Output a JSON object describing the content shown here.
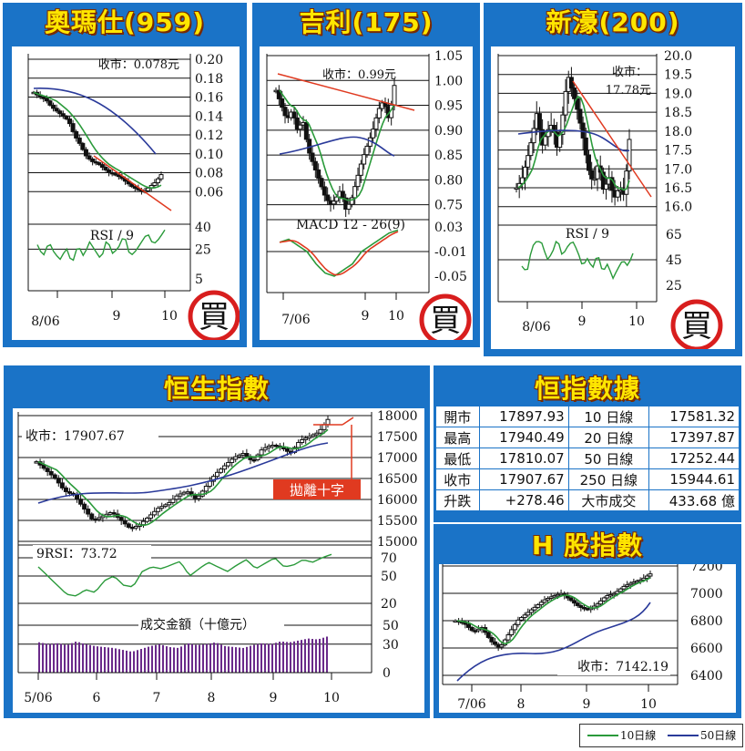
{
  "stocks": [
    {
      "title": "奧瑪仕(959)",
      "close_label": "收市：0.078元",
      "indicator": "RSI / 9",
      "xticks": [
        "8/06",
        "9",
        "10"
      ],
      "yticks": [
        "0.20",
        "0.18",
        "0.16",
        "0.14",
        "0.12",
        "0.10",
        "0.08",
        "0.06"
      ],
      "ind_ticks": [
        "40",
        "25",
        "5"
      ],
      "rating": "買"
    },
    {
      "title": "吉利(175)",
      "close_label": "收市：0.99元",
      "indicator": "MACD 12 - 26(9)",
      "xticks": [
        "7/06",
        "9",
        "10"
      ],
      "yticks": [
        "1.05",
        "1.00",
        "0.95",
        "0.90",
        "0.85",
        "0.80",
        "0.75"
      ],
      "ind_ticks": [
        "0.03",
        "-0.01",
        "-0.05"
      ],
      "rating": "買"
    },
    {
      "title": "新濠(200)",
      "close_label_1": "收市：",
      "close_label_2": "17.78元",
      "indicator": "RSI / 9",
      "xticks": [
        "8/06",
        "9",
        "10"
      ],
      "yticks": [
        "20.0",
        "19.5",
        "19.0",
        "18.5",
        "18.0",
        "17.5",
        "17.0",
        "16.5",
        "16.0"
      ],
      "ind_ticks": [
        "65",
        "45",
        "25"
      ],
      "rating": "買"
    }
  ],
  "hsi": {
    "title": "恒生指數",
    "close_label": "收市：17907.67",
    "annotation": "拋離十字",
    "rsi_label": "9RSI：73.72",
    "turnover_label": "成交金額（十億元）",
    "yticks": [
      "18000",
      "17500",
      "17000",
      "16500",
      "16000",
      "15500",
      "15000"
    ],
    "rsi_ticks": [
      "70",
      "50",
      "20"
    ],
    "vol_ticks": [
      "50",
      "30",
      "0"
    ],
    "xticks": [
      "5/06",
      "6",
      "7",
      "8",
      "9",
      "10"
    ]
  },
  "table": {
    "title": "恒指數據",
    "rows": [
      [
        "開市",
        "17897.93",
        "10 日線",
        "17581.32"
      ],
      [
        "最高",
        "17940.49",
        "20 日線",
        "17397.87"
      ],
      [
        "最低",
        "17810.07",
        "50 日線",
        "17252.44"
      ],
      [
        "收市",
        "17907.67",
        "250 日線",
        "15944.61"
      ],
      [
        "升跌",
        "+278.46",
        "大市成交",
        "433.68 億"
      ]
    ]
  },
  "hshare": {
    "title": "H 股指數",
    "close_label": "收市：7142.19",
    "yticks": [
      "7200",
      "7000",
      "6800",
      "6600",
      "6400"
    ],
    "xticks": [
      "7/06",
      "8",
      "9",
      "10"
    ]
  },
  "legend": {
    "items": [
      "10日線",
      "50日線"
    ]
  },
  "colors": {
    "panel": "#1a73c7",
    "title": "#ffe600",
    "ma10": "#2a9a3a",
    "ma50": "#2a3a9a",
    "trend": "#e03a20",
    "price": "#111111",
    "rating": "#d81e1e"
  },
  "chart_data": [
    {
      "type": "candlestick",
      "title": "奧瑪仕(959)",
      "ylim": [
        0.04,
        0.2
      ],
      "close": [
        0.165,
        0.16,
        0.158,
        0.15,
        0.145,
        0.14,
        0.135,
        0.12,
        0.11,
        0.098,
        0.092,
        0.09,
        0.085,
        0.08,
        0.078,
        0.075,
        0.07,
        0.065,
        0.062,
        0.06,
        0.065,
        0.07,
        0.078
      ],
      "ma10_endpoints": [
        0.165,
        0.075
      ],
      "ma50_endpoints": [
        0.165,
        0.12
      ],
      "rsi": [
        28,
        20,
        30,
        22,
        18,
        26,
        15,
        28,
        20,
        30,
        24,
        18,
        32,
        22,
        26,
        35,
        20,
        24,
        30,
        36,
        28,
        32,
        38
      ]
    },
    {
      "type": "candlestick",
      "title": "吉利(175)",
      "ylim": [
        0.72,
        1.05
      ],
      "close": [
        0.98,
        0.95,
        0.92,
        0.94,
        0.9,
        0.92,
        0.86,
        0.83,
        0.8,
        0.77,
        0.75,
        0.76,
        0.78,
        0.74,
        0.76,
        0.8,
        0.84,
        0.87,
        0.9,
        0.94,
        0.96,
        0.92,
        0.99
      ],
      "macd": [
        0.005,
        0.01,
        0.0,
        -0.01,
        -0.03,
        -0.045,
        -0.05,
        -0.04,
        -0.03,
        -0.01,
        0.0,
        0.01,
        0.02,
        0.025
      ]
    },
    {
      "type": "candlestick",
      "title": "新濠(200)",
      "ylim": [
        15.8,
        20.0
      ],
      "close": [
        16.5,
        16.7,
        17.2,
        17.8,
        18.5,
        17.6,
        18.0,
        18.2,
        17.5,
        18.4,
        19.5,
        19.0,
        18.5,
        17.8,
        17.0,
        16.6,
        17.2,
        16.4,
        16.8,
        16.2,
        16.5,
        16.3,
        17.78
      ],
      "rsi": [
        40,
        35,
        55,
        60,
        58,
        45,
        50,
        62,
        48,
        55,
        60,
        52,
        40,
        46,
        38,
        50,
        35,
        42,
        30,
        38,
        45,
        40,
        50
      ]
    },
    {
      "type": "candlestick",
      "title": "恒生指數",
      "ylim": [
        15000,
        18000
      ],
      "close": [
        16900,
        16700,
        16500,
        16200,
        16100,
        15800,
        15500,
        15600,
        15700,
        15500,
        15300,
        15400,
        15600,
        15800,
        15900,
        16100,
        16200,
        16000,
        16300,
        16600,
        16800,
        17000,
        17100,
        16900,
        17200,
        17300,
        17250,
        17100,
        17400,
        17500,
        17600,
        17908
      ],
      "rsi": [
        60,
        50,
        40,
        30,
        28,
        35,
        32,
        45,
        50,
        40,
        38,
        55,
        60,
        58,
        62,
        66,
        50,
        58,
        65,
        60,
        55,
        62,
        68,
        58,
        64,
        70,
        60,
        62,
        68,
        65,
        70,
        73.72
      ],
      "turnover": [
        32,
        30,
        31,
        29,
        33,
        30,
        28,
        27,
        26,
        24,
        22,
        25,
        28,
        30,
        27,
        26,
        31,
        29,
        30,
        32,
        28,
        27,
        26,
        29,
        31,
        30,
        33,
        32,
        34,
        36,
        35,
        38
      ]
    },
    {
      "type": "candlestick",
      "title": "H 股指數",
      "ylim": [
        6400,
        7200
      ],
      "close": [
        6800,
        6780,
        6720,
        6750,
        6650,
        6600,
        6700,
        6800,
        6850,
        6900,
        6950,
        6980,
        7000,
        6950,
        6900,
        6880,
        6920,
        6980,
        7000,
        7050,
        7080,
        7100,
        7142.19
      ]
    }
  ]
}
